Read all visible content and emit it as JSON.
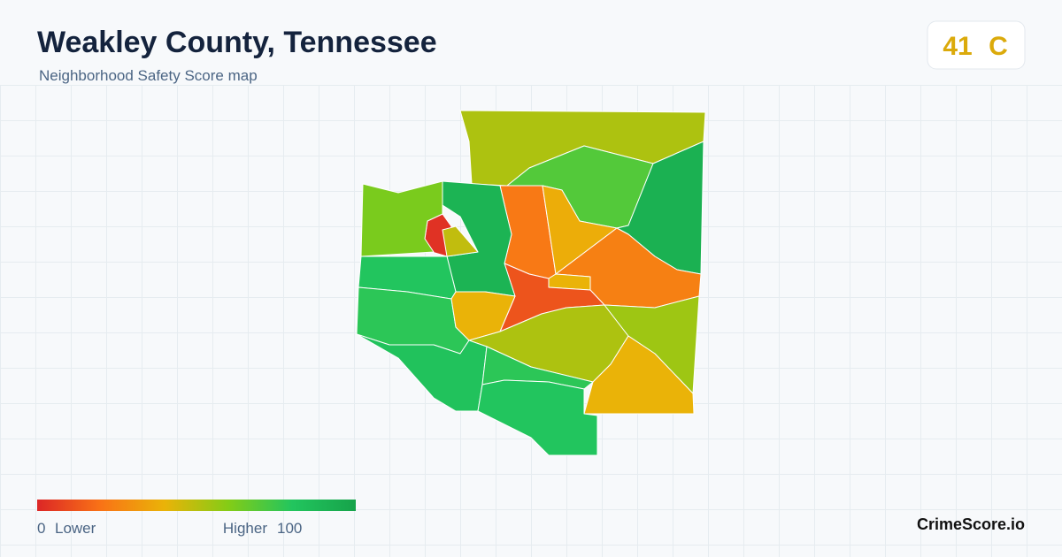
{
  "header": {
    "title": "Weakley County, Tennessee",
    "subtitle": "Neighborhood Safety Score map"
  },
  "score": {
    "value": 41,
    "grade": "C",
    "color": "#dbaa0b"
  },
  "map": {
    "region_scores": [
      52,
      70,
      92,
      22,
      38,
      24,
      40,
      12,
      90,
      3,
      48,
      62,
      80,
      78,
      40,
      52,
      55,
      40,
      82,
      78,
      80
    ]
  },
  "legend": {
    "min": 0,
    "min_label": "Lower",
    "max_label": "Higher",
    "max": 100,
    "colors": [
      "#dc2626",
      "#f97316",
      "#eab308",
      "#84cc16",
      "#22c55e",
      "#16a34a"
    ]
  },
  "footer": {
    "brand": "CrimeScore.io"
  }
}
